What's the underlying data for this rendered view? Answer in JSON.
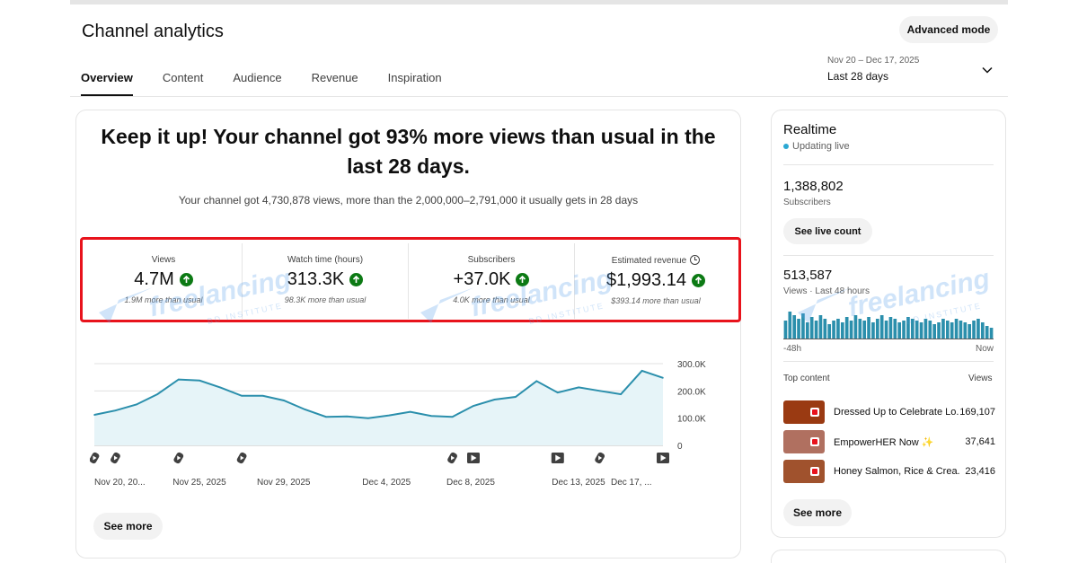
{
  "header": {
    "title": "Channel analytics",
    "advanced_mode_label": "Advanced mode"
  },
  "tabs": [
    {
      "label": "Overview",
      "active": true
    },
    {
      "label": "Content",
      "active": false
    },
    {
      "label": "Audience",
      "active": false
    },
    {
      "label": "Revenue",
      "active": false
    },
    {
      "label": "Inspiration",
      "active": false
    }
  ],
  "date_range": {
    "range": "Nov 20 – Dec 17, 2025",
    "label": "Last 28 days"
  },
  "summary": {
    "headline_line1": "Keep it up! Your channel got 93% more views than usual in the",
    "headline_line2": "last 28 days.",
    "subline": "Your channel got 4,730,878 views, more than the 2,000,000–2,791,000 it usually gets in 28 days"
  },
  "metrics": [
    {
      "label": "Views",
      "value": "4.7M",
      "sub": "1.9M more than usual",
      "trend": "up"
    },
    {
      "label": "Watch time (hours)",
      "value": "313.3K",
      "sub": "98.3K more than usual",
      "trend": "up"
    },
    {
      "label": "Subscribers",
      "value": "+37.0K",
      "sub": "4.0K more than usual",
      "trend": "up"
    },
    {
      "label": "Estimated revenue",
      "value": "$1,993.14",
      "sub": "$393.14 more than usual",
      "trend": "up"
    }
  ],
  "chart_data": {
    "type": "area",
    "y_ticks": [
      "300.0K",
      "200.0K",
      "100.0K",
      "0"
    ],
    "ylim": [
      0,
      300000
    ],
    "x_labels": [
      "Nov 20, 20...",
      "Nov 25, 2025",
      "Nov 29, 2025",
      "Dec 4, 2025",
      "Dec 8, 2025",
      "Dec 13, 2025",
      "Dec 17, ..."
    ],
    "x": [
      "Nov 20",
      "Nov 21",
      "Nov 22",
      "Nov 23",
      "Nov 24",
      "Nov 25",
      "Nov 26",
      "Nov 27",
      "Nov 28",
      "Nov 29",
      "Nov 30",
      "Dec 1",
      "Dec 2",
      "Dec 3",
      "Dec 4",
      "Dec 5",
      "Dec 6",
      "Dec 7",
      "Dec 8",
      "Dec 9",
      "Dec 10",
      "Dec 11",
      "Dec 12",
      "Dec 13",
      "Dec 14",
      "Dec 15",
      "Dec 16",
      "Dec 17"
    ],
    "series": [
      {
        "values": [
          112000,
          128000,
          150000,
          188000,
          242000,
          238000,
          212000,
          182000,
          182000,
          165000,
          132000,
          105000,
          106000,
          100000,
          110000,
          123000,
          108000,
          105000,
          145000,
          168000,
          178000,
          236000,
          194000,
          213000,
          200000,
          188000,
          274000,
          248000
        ]
      }
    ],
    "markers": [
      "shorts",
      "shorts",
      "",
      "",
      "shorts",
      "",
      "",
      "shorts",
      "",
      "",
      "",
      "",
      "",
      "",
      "",
      "",
      "",
      "shorts",
      "video",
      "",
      "",
      "",
      "video",
      "",
      "shorts",
      "",
      "",
      "video"
    ],
    "grid": true,
    "colors": {
      "line": "#2b8fac",
      "fill": "#e6f4f8"
    }
  },
  "see_more_label": "See more",
  "realtime": {
    "title": "Realtime",
    "status": "Updating live",
    "subscribers_value": "1,388,802",
    "subscribers_label": "Subscribers",
    "live_count_label": "See live count",
    "views_value": "513,587",
    "views_label": "Views · Last 48 hours",
    "axis_left": "-48h",
    "axis_right": "Now",
    "bar_values": [
      20,
      30,
      26,
      22,
      28,
      18,
      24,
      20,
      26,
      22,
      16,
      20,
      22,
      18,
      24,
      20,
      26,
      22,
      20,
      24,
      18,
      22,
      26,
      20,
      24,
      22,
      18,
      20,
      24,
      22,
      20,
      18,
      22,
      20,
      16,
      18,
      22,
      20,
      18,
      22,
      20,
      18,
      16,
      20,
      22,
      18,
      14,
      12
    ],
    "top_content_label": "Top content",
    "views_col_label": "Views",
    "top_content": [
      {
        "title": "Dressed Up to Celebrate Lo...",
        "views": "169,107",
        "thumb": "#9a3a12"
      },
      {
        "title": "EmpowerHER Now ✨",
        "views": "37,641",
        "thumb": "#b07060"
      },
      {
        "title": "Honey Salmon, Rice & Crea...",
        "views": "23,416",
        "thumb": "#a0522d"
      }
    ],
    "see_more_label": "See more"
  },
  "watermark": {
    "text": "freelancing",
    "subtext": "BD INSTITUTE",
    "color": "#5aa0ea"
  }
}
